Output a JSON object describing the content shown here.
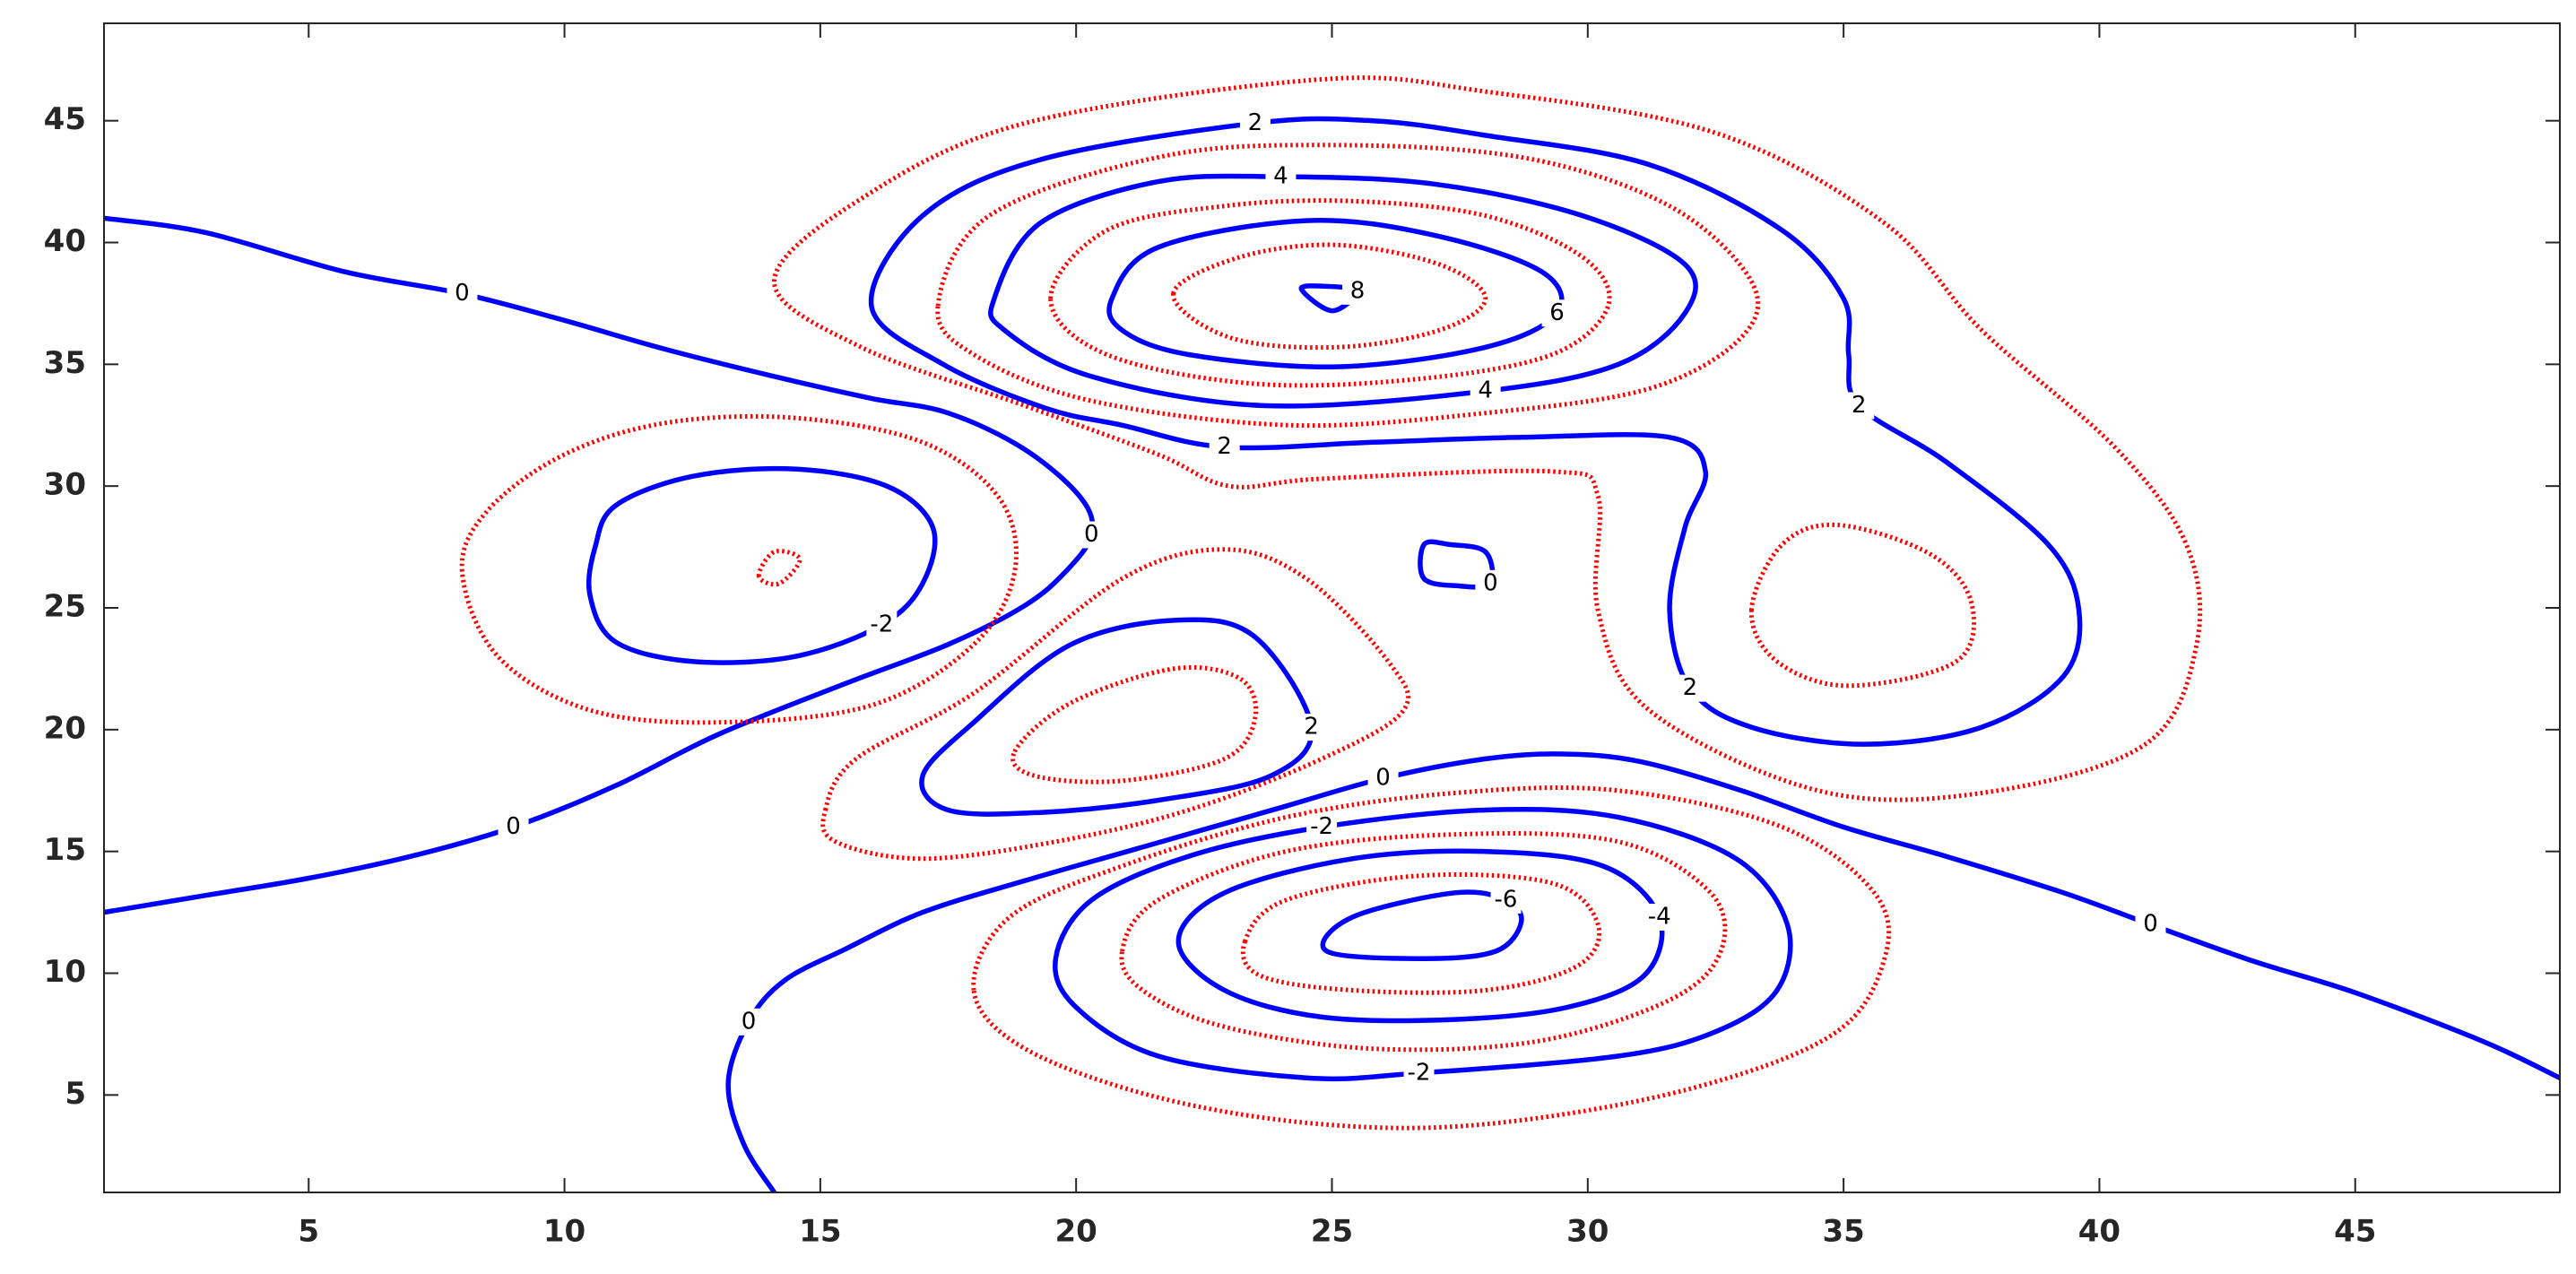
{
  "chart_data": {
    "type": "contour",
    "xlim": [
      1,
      49
    ],
    "ylim": [
      1,
      49
    ],
    "xticks": [
      5,
      10,
      15,
      20,
      25,
      30,
      35,
      40,
      45
    ],
    "yticks": [
      5,
      10,
      15,
      20,
      25,
      30,
      35,
      40,
      45
    ],
    "contours": [
      {
        "level": 0,
        "color": "#0000ff",
        "style": "solid",
        "x": [
          1,
          3,
          5.7,
          8,
          10,
          12,
          14.3,
          16,
          17.5,
          19,
          20.1,
          20.3,
          19.8,
          19,
          17.5,
          15.5,
          13,
          11,
          9,
          7,
          5,
          3,
          1
        ],
        "y": [
          41,
          40.4,
          38.8,
          37.9,
          36.8,
          35.6,
          34.4,
          33.6,
          33,
          31.5,
          29.5,
          28,
          26.5,
          25.1,
          23.5,
          21.9,
          19.8,
          17.7,
          16,
          14.8,
          13.9,
          13.2,
          12.5
        ]
      },
      {
        "level": 0,
        "color": "#0000ff",
        "style": "solid",
        "x": [
          14.1,
          13.5,
          13.2,
          13.6,
          14.3,
          15.5,
          17,
          19,
          21,
          22.5,
          24,
          26,
          28,
          29.5,
          31,
          33,
          35,
          37,
          39.3,
          41,
          43,
          45,
          47.5,
          49
        ],
        "y": [
          1,
          3,
          5.5,
          8,
          9.7,
          11,
          12.5,
          13.8,
          15,
          15.9,
          16.8,
          18,
          18.8,
          19,
          18.7,
          17.5,
          16,
          14.8,
          13.3,
          12,
          10.5,
          9.2,
          7.2,
          5.7
        ]
      },
      {
        "level": 0,
        "color": "#0000ff",
        "style": "solid",
        "x": [
          26.8,
          26.8,
          27.5,
          28.1,
          28,
          27.3,
          26.8
        ],
        "y": [
          27.6,
          26.2,
          25.9,
          26,
          27.3,
          27.6,
          27.6
        ]
      },
      {
        "level": -2,
        "color": "#0000ff",
        "style": "solid",
        "x": [
          11,
          12.5,
          14.5,
          16.3,
          17.2,
          17,
          16.2,
          14.5,
          12.5,
          11,
          10.5,
          10.6,
          11
        ],
        "y": [
          29.2,
          30.4,
          30.7,
          30,
          28.3,
          26,
          24.3,
          23,
          22.8,
          23.6,
          25.5,
          27.5,
          29.2
        ]
      },
      {
        "color": "#ff0000",
        "style": "dotted",
        "x": [
          13.8,
          14.1,
          14.6,
          14.2,
          13.8
        ],
        "y": [
          26.3,
          27.3,
          27,
          26,
          26.3
        ]
      },
      {
        "color": "#ff0000",
        "style": "dotted",
        "x": [
          8,
          8.5,
          10,
          12,
          14.5,
          17,
          18.5,
          18.8,
          18,
          16,
          13,
          10.5,
          8.7,
          8
        ],
        "y": [
          26.5,
          29,
          31.3,
          32.6,
          32.8,
          31.8,
          29.5,
          26.5,
          23.5,
          21,
          20.3,
          20.8,
          23,
          26.5
        ]
      },
      {
        "level": 2,
        "color": "#0000ff",
        "style": "solid",
        "x": [
          16,
          17,
          19.3,
          23.5,
          25.8,
          28,
          31.2,
          33.8,
          35,
          35.1,
          35.3,
          37,
          39,
          39.6,
          39.3,
          37.7,
          35.4,
          33.2,
          32,
          31.6,
          31.9,
          32.3,
          31.6,
          28.7,
          25.8,
          22.9,
          20.9,
          19.4,
          17.4,
          16
        ],
        "y": [
          37.4,
          41.1,
          43.4,
          44.9,
          45,
          44.4,
          43.2,
          40.5,
          37.7,
          35.4,
          33.3,
          31,
          27.6,
          24.9,
          22.2,
          20.1,
          19.4,
          20.1,
          21.7,
          24.9,
          28.3,
          30.6,
          32,
          32,
          31.8,
          31.6,
          32.5,
          33.2,
          35,
          37.4
        ]
      },
      {
        "level": 2,
        "color": "#0000ff",
        "style": "solid",
        "x": [
          17,
          18,
          19.9,
          22,
          23.5,
          24.6,
          23.8,
          21.6,
          19.3,
          17.5,
          17
        ],
        "y": [
          18.1,
          20.3,
          23.5,
          24.5,
          23.8,
          20.1,
          18.1,
          17.1,
          16.6,
          16.7,
          18.1
        ]
      },
      {
        "color": "#ff0000",
        "style": "dotted",
        "x": [
          15.1,
          15.7,
          18,
          20.9,
          22.9,
          24.5,
          26.1,
          26.4,
          24.8,
          22.2,
          19.6,
          17,
          15.3,
          15.1
        ],
        "y": [
          16.7,
          18.8,
          21.5,
          26.2,
          27.4,
          26.2,
          22.8,
          20.8,
          18.8,
          16.7,
          15.4,
          14.7,
          15.4,
          16.7
        ]
      },
      {
        "color": "#ff0000",
        "style": "dotted",
        "x": [
          18.8,
          19.9,
          21.9,
          23.2,
          23.5,
          22.9,
          20.9,
          19.2,
          18.8
        ],
        "y": [
          19.1,
          21.1,
          22.5,
          22.1,
          20.5,
          18.8,
          17.9,
          18.1,
          19.1
        ]
      },
      {
        "color": "#ff0000",
        "style": "dotted",
        "x": [
          14.1,
          15.8,
          19,
          24.8,
          28,
          32.5,
          35.8,
          37.7,
          40.3,
          41.7,
          41.9,
          40.9,
          37.7,
          34.5,
          31.2,
          30.2,
          30.2,
          29.3,
          24.8,
          23,
          21.6,
          19,
          15.8,
          14.1
        ],
        "y": [
          38.4,
          41.8,
          44.9,
          46.7,
          46.2,
          44.5,
          40.8,
          36.4,
          31.6,
          27.6,
          23.5,
          19.4,
          17.4,
          17.5,
          20.8,
          24.9,
          29.6,
          30.6,
          30.3,
          30,
          31.3,
          33.3,
          35.7,
          38.4
        ]
      },
      {
        "color": "#ff0000",
        "style": "dotted",
        "x": [
          33.2,
          33.8,
          34.9,
          36.7,
          37.5,
          37.2,
          35.1,
          33.7,
          33.2
        ],
        "y": [
          24.9,
          27.6,
          28.4,
          27.2,
          25.2,
          22.8,
          21.8,
          22.8,
          24.9
        ]
      },
      {
        "color": "#ff0000",
        "style": "dotted",
        "x": [
          17.3,
          18.3,
          21.6,
          24.8,
          28.7,
          31.6,
          33.2,
          33,
          31.2,
          28,
          24.2,
          20.3,
          18,
          17.3
        ],
        "y": [
          37.4,
          41.1,
          43.5,
          44,
          43.5,
          41.5,
          38.4,
          36.1,
          34,
          33,
          32.5,
          33.5,
          35.4,
          37.4
        ]
      },
      {
        "level": 4,
        "color": "#0000ff",
        "style": "solid",
        "x": [
          18.4,
          19.3,
          21.6,
          24,
          27,
          29.9,
          31.9,
          31.9,
          30.6,
          28,
          23.7,
          20.3,
          18.6,
          18.4
        ],
        "y": [
          37.7,
          40.8,
          42.5,
          42.7,
          42.4,
          41.1,
          39.1,
          37.1,
          35,
          33.9,
          33.3,
          34.5,
          36.4,
          37.7
        ]
      },
      {
        "color": "#ff0000",
        "style": "dotted",
        "x": [
          19.5,
          20.6,
          22.9,
          25.4,
          28,
          29.9,
          30.4,
          29.3,
          26.7,
          23.5,
          20.6,
          19.5
        ],
        "y": [
          37.7,
          40.5,
          41.5,
          41.7,
          41.1,
          39.4,
          37.4,
          35.4,
          34.4,
          34.2,
          35.4,
          37.7
        ]
      },
      {
        "level": 6,
        "color": "#0000ff",
        "style": "solid",
        "x": [
          20.7,
          21.6,
          24.5,
          27,
          29.1,
          29.4,
          28,
          25.1,
          22.2,
          20.9,
          20.7
        ],
        "y": [
          37.7,
          39.8,
          40.9,
          40.3,
          38.8,
          37.1,
          35.7,
          34.9,
          35.4,
          36.4,
          37.7
        ]
      },
      {
        "color": "#ff0000",
        "style": "dotted",
        "x": [
          21.9,
          23.2,
          25.1,
          27.1,
          28,
          27.1,
          25.1,
          23,
          21.9
        ],
        "y": [
          37.9,
          39.4,
          39.9,
          39.1,
          37.7,
          36.4,
          35.7,
          36.1,
          37.9
        ]
      },
      {
        "level": 8,
        "color": "#0000ff",
        "style": "solid",
        "x": [
          24.4,
          24.9,
          25.5,
          25,
          24.4
        ],
        "y": [
          38.1,
          38.2,
          38,
          37.2,
          38.1
        ]
      },
      {
        "color": "#ff0000",
        "style": "dotted",
        "x": [
          18,
          18.7,
          20.9,
          24.1,
          27.4,
          30.6,
          33.8,
          35.6,
          35.8,
          34.8,
          31.9,
          28,
          24.8,
          21.6,
          19,
          18
        ],
        "y": [
          9.3,
          12.3,
          14.4,
          16.4,
          17.4,
          17.5,
          16,
          13.3,
          10.6,
          7.5,
          5.2,
          3.8,
          3.8,
          4.9,
          6.9,
          9.3
        ]
      },
      {
        "level": -2,
        "color": "#0000ff",
        "style": "solid",
        "x": [
          19.6,
          20.3,
          22.2,
          24.8,
          28,
          30.6,
          32.9,
          33.9,
          33.7,
          32.5,
          30.6,
          26.7,
          24.5,
          21.6,
          20,
          19.6
        ],
        "y": [
          10.6,
          13,
          14.8,
          16,
          16.7,
          16.4,
          14.7,
          12,
          9.3,
          7.6,
          6.6,
          5.9,
          5.7,
          6.6,
          8.6,
          10.6
        ]
      },
      {
        "color": "#ff0000",
        "style": "dotted",
        "x": [
          20.9,
          21.6,
          24.1,
          27.4,
          30.6,
          32.4,
          32.6,
          31.6,
          29,
          25.8,
          22.9,
          21.3,
          20.9
        ],
        "y": [
          10.9,
          13,
          15,
          15.7,
          15.4,
          13.3,
          10.9,
          8.9,
          7.2,
          6.9,
          7.8,
          9.3,
          10.9
        ]
      },
      {
        "level": -4,
        "color": "#0000ff",
        "style": "solid",
        "x": [
          22,
          22.9,
          25.4,
          28,
          30.3,
          31.4,
          31.1,
          29.6,
          27.4,
          24.8,
          22.9,
          22
        ],
        "y": [
          11.3,
          13.3,
          14.7,
          15,
          14.4,
          12.3,
          9.9,
          8.6,
          8.1,
          8.2,
          9.3,
          11.3
        ]
      },
      {
        "color": "#ff0000",
        "style": "dotted",
        "x": [
          23.3,
          24.1,
          26.7,
          29.3,
          30.2,
          29.8,
          28,
          25.4,
          23.6,
          23.3
        ],
        "y": [
          11.3,
          13,
          14,
          13.7,
          12,
          10.3,
          9.3,
          9.3,
          9.9,
          11.3
        ]
      },
      {
        "level": -6,
        "color": "#0000ff",
        "style": "solid",
        "x": [
          24.9,
          25.4,
          27.4,
          28.4,
          28.7,
          28.2,
          26.8,
          24.9
        ],
        "y": [
          10.9,
          12.3,
          13.3,
          13,
          12.1,
          10.9,
          10.6,
          10.9
        ]
      }
    ]
  }
}
